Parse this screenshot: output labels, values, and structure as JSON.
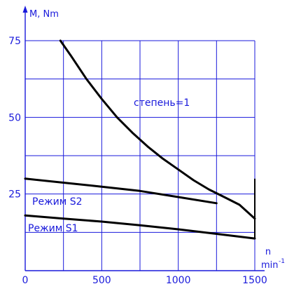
{
  "chart_data": {
    "type": "line",
    "x_ticks": [
      "0",
      "500",
      "1000",
      "1500"
    ],
    "y_ticks": [
      "25",
      "50",
      "75"
    ],
    "xlim": [
      0,
      1500
    ],
    "ylim": [
      0,
      75
    ],
    "x_grid_step": 250,
    "y_grid_step": 12.5,
    "grid": true,
    "ylabel": "M, Nm",
    "xlabel_top": "n",
    "xlabel_bottom": "min",
    "xlabel_sup": "-1",
    "annotations": {
      "ratio": "степень=1",
      "s2": "Режим S2",
      "s1": "Режим S1"
    },
    "series": [
      {
        "x": [
          230,
          300,
          400,
          500,
          600,
          700,
          800,
          900,
          1000,
          1100,
          1200,
          1300,
          1400,
          1500
        ],
        "y": [
          75,
          70,
          62.5,
          56,
          50,
          45,
          40.5,
          36.5,
          33,
          29.5,
          26.5,
          24,
          21.5,
          17
        ]
      },
      {
        "x": [
          0,
          250,
          500,
          750,
          1000,
          1250
        ],
        "y": [
          30,
          28.7,
          27.4,
          26,
          24,
          22
        ]
      },
      {
        "x": [
          0,
          250,
          500,
          750,
          1000,
          1250,
          1500
        ],
        "y": [
          18,
          17,
          16,
          14.8,
          13.5,
          12,
          10.5
        ]
      }
    ],
    "colors": {
      "grid": "#1a1adb",
      "curve": "#000000",
      "text": "#1a1adb"
    }
  }
}
